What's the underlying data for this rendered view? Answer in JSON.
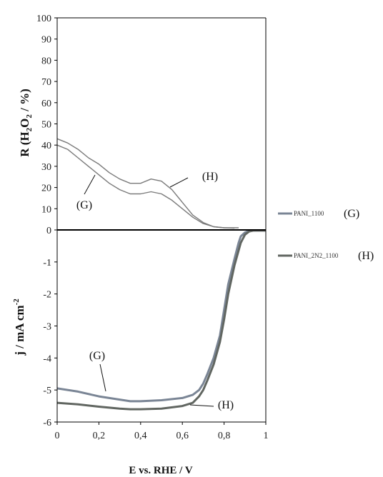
{
  "chart_data": {
    "type": "line",
    "xlabel": "E vs. RHE / V",
    "x_ticks": [
      "0",
      "0,2",
      "0,4",
      "0,6",
      "0,8",
      "1"
    ],
    "xlim": [
      0,
      1
    ],
    "top_panel": {
      "ylabel_parts": {
        "pre": "R (",
        "main1": "H",
        "sub1": "2",
        "main2": "O",
        "sub2": "2",
        "post": " / %)"
      },
      "ylim": [
        0,
        100
      ],
      "y_ticks": [
        "100",
        "90",
        "80",
        "70",
        "60",
        "50",
        "40",
        "30",
        "20",
        "10",
        "0"
      ],
      "series": [
        {
          "tag": "(G)",
          "color": "#7a7a7a",
          "x": [
            0.0,
            0.05,
            0.1,
            0.15,
            0.2,
            0.25,
            0.3,
            0.35,
            0.4,
            0.45,
            0.5,
            0.55,
            0.6,
            0.65,
            0.7,
            0.75,
            0.8,
            0.85
          ],
          "y": [
            40,
            38,
            34,
            30,
            26,
            22,
            19,
            17,
            17,
            18,
            17,
            14,
            10,
            6,
            3,
            1.5,
            1,
            0.8
          ]
        },
        {
          "tag": "(H)",
          "color": "#7a7a7a",
          "x": [
            0.0,
            0.05,
            0.1,
            0.15,
            0.2,
            0.25,
            0.3,
            0.35,
            0.4,
            0.45,
            0.5,
            0.55,
            0.6,
            0.65,
            0.7,
            0.75,
            0.8,
            0.87
          ],
          "y": [
            43,
            41,
            38,
            34,
            31,
            27,
            24,
            22,
            22,
            24,
            23,
            19,
            13,
            7,
            3.5,
            1.5,
            1,
            1
          ]
        }
      ]
    },
    "bottom_panel": {
      "ylabel_parts": {
        "main": "j / mA cm",
        "sup": "-2"
      },
      "ylim": [
        -6,
        0
      ],
      "y_ticks": [
        "-1",
        "-2",
        "-3",
        "-4",
        "-5",
        "-6"
      ],
      "series": [
        {
          "tag": "(G)",
          "color": "#7a8595",
          "x": [
            0.0,
            0.1,
            0.2,
            0.3,
            0.35,
            0.4,
            0.5,
            0.6,
            0.65,
            0.68,
            0.7,
            0.72,
            0.75,
            0.78,
            0.8,
            0.82,
            0.85,
            0.87,
            0.88,
            0.9,
            0.92,
            0.95,
            1.0
          ],
          "y": [
            -4.95,
            -5.05,
            -5.2,
            -5.3,
            -5.35,
            -5.35,
            -5.32,
            -5.25,
            -5.15,
            -5.0,
            -4.8,
            -4.5,
            -4.0,
            -3.3,
            -2.5,
            -1.7,
            -0.9,
            -0.4,
            -0.2,
            -0.08,
            -0.03,
            -0.02,
            -0.02
          ]
        },
        {
          "tag": "(H)",
          "color": "#616661",
          "x": [
            0.0,
            0.1,
            0.2,
            0.3,
            0.35,
            0.4,
            0.5,
            0.6,
            0.65,
            0.68,
            0.7,
            0.72,
            0.75,
            0.78,
            0.8,
            0.82,
            0.85,
            0.88,
            0.9,
            0.92,
            0.94,
            1.0
          ],
          "y": [
            -5.4,
            -5.45,
            -5.52,
            -5.58,
            -5.6,
            -5.6,
            -5.58,
            -5.5,
            -5.4,
            -5.2,
            -5.0,
            -4.7,
            -4.2,
            -3.5,
            -2.8,
            -2.0,
            -1.1,
            -0.4,
            -0.15,
            -0.05,
            -0.02,
            -0.02
          ]
        }
      ]
    },
    "legend": [
      {
        "label": "PANI_1100",
        "tag": "(G)",
        "color": "#7a8595"
      },
      {
        "label": "PANI_2N2_1100",
        "tag": "(H)",
        "color": "#616661"
      }
    ],
    "annotations": [
      {
        "panel": "top",
        "text": "(H)"
      },
      {
        "panel": "top",
        "text": "(G)"
      },
      {
        "panel": "bottom",
        "text": "(G)"
      },
      {
        "panel": "bottom",
        "text": "(H)"
      }
    ]
  }
}
